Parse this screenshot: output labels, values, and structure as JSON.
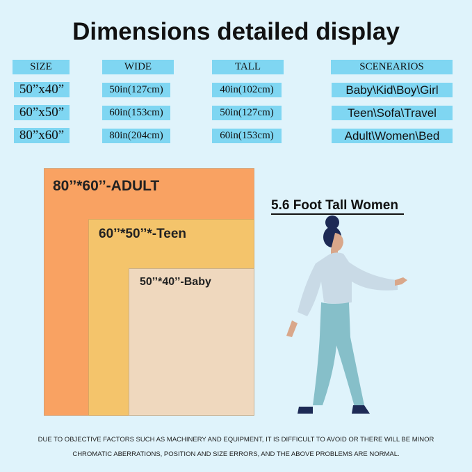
{
  "title": "Dimensions detailed display",
  "table": {
    "headers": [
      "SIZE",
      "WIDE",
      "TALL",
      "SCENEARIOS"
    ],
    "rows": [
      {
        "size": "50”x40”",
        "wide": "50in(127cm)",
        "tall": "40in(102cm)",
        "scenarios": "Baby\\Kid\\Boy\\Girl"
      },
      {
        "size": "60”x50”",
        "wide": "60in(153cm)",
        "tall": "50in(127cm)",
        "scenarios": "Teen\\Sofa\\Travel"
      },
      {
        "size": "80”x60”",
        "wide": "80in(204cm)",
        "tall": "60in(153cm)",
        "scenarios": "Adult\\Women\\Bed"
      }
    ]
  },
  "blankets": [
    {
      "label": "80’’*60’’-ADULT",
      "color": "#f9a262"
    },
    {
      "label": "60’’*50’’*-Teen",
      "color": "#f4c46b"
    },
    {
      "label": "50’’*40’’-Baby",
      "color": "#efd8be"
    }
  ],
  "figure_label": "5.6 Foot Tall Women",
  "disclaimer": [
    "DUE TO OBJECTIVE FACTORS SUCH AS MACHINERY AND EQUIPMENT, IT IS DIFFICULT TO AVOID OR THERE WILL BE MINOR",
    "CHROMATIC ABERRATIONS, POSITION AND SIZE ERRORS, AND THE ABOVE PROBLEMS ARE NORMAL."
  ]
}
